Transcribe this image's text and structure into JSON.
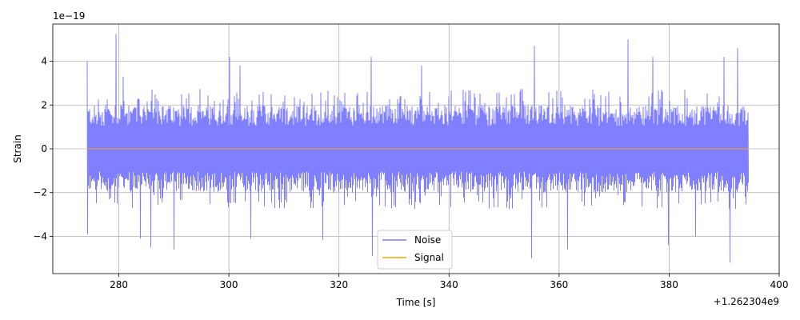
{
  "chart_data": {
    "type": "line",
    "title": "",
    "xlabel": "Time [s]",
    "ylabel": "Strain",
    "x_offset_label": "+1.262304e9",
    "y_scale_label": "1e−19",
    "xlim": [
      1262304268,
      1262304400
    ],
    "ylim": [
      -5.7e-19,
      5.7e-19
    ],
    "x_ticks": [
      1262304280,
      1262304300,
      1262304320,
      1262304340,
      1262304360,
      1262304380,
      1262304400
    ],
    "x_tick_labels": [
      "280",
      "300",
      "320",
      "340",
      "360",
      "380",
      "400"
    ],
    "y_ticks": [
      -4e-19,
      -2e-19,
      0,
      2e-19,
      4e-19
    ],
    "y_tick_labels": [
      "−4",
      "−2",
      "0",
      "2",
      "4"
    ],
    "grid": true,
    "legend_position": "bottom-center",
    "series": [
      {
        "name": "Noise",
        "color": "#7f7fff",
        "x_range": [
          1262304274.2,
          1262304394.4
        ],
        "typical_band": [
          -1.9e-19,
          1.9e-19
        ],
        "extremes": [
          {
            "x": 1262304274.2,
            "y": 4e-19
          },
          {
            "x": 1262304274.3,
            "y": -3.9e-19
          },
          {
            "x": 1262304279.5,
            "y": 5.25e-19
          },
          {
            "x": 1262304280.8,
            "y": 3.3e-19
          },
          {
            "x": 1262304283.8,
            "y": -4.1e-19
          },
          {
            "x": 1262304285.7,
            "y": -4.5e-19
          },
          {
            "x": 1262304290.0,
            "y": -4.6e-19
          },
          {
            "x": 1262304300.2,
            "y": 4.2e-19
          },
          {
            "x": 1262304302.0,
            "y": 3.8e-19
          },
          {
            "x": 1262304303.9,
            "y": -4.1e-19
          },
          {
            "x": 1262304317.0,
            "y": -4.15e-19
          },
          {
            "x": 1262304325.8,
            "y": 4.2e-19
          },
          {
            "x": 1262304326.0,
            "y": -4.9e-19
          },
          {
            "x": 1262304335.0,
            "y": 3.8e-19
          },
          {
            "x": 1262304355.0,
            "y": -5e-19
          },
          {
            "x": 1262304355.5,
            "y": 4.7e-19
          },
          {
            "x": 1262304361.5,
            "y": -4.6e-19
          },
          {
            "x": 1262304372.5,
            "y": 5e-19
          },
          {
            "x": 1262304377.0,
            "y": 4.2e-19
          },
          {
            "x": 1262304379.8,
            "y": -4.4e-19
          },
          {
            "x": 1262304384.7,
            "y": -4e-19
          },
          {
            "x": 1262304390.0,
            "y": 4.2e-19
          },
          {
            "x": 1262304391.0,
            "y": -5.2e-19
          },
          {
            "x": 1262304392.5,
            "y": 4.6e-19
          }
        ]
      },
      {
        "name": "Signal",
        "color": "#ffa500",
        "x_range": [
          1262304274.2,
          1262304394.4
        ],
        "values_constant": 0
      }
    ]
  }
}
